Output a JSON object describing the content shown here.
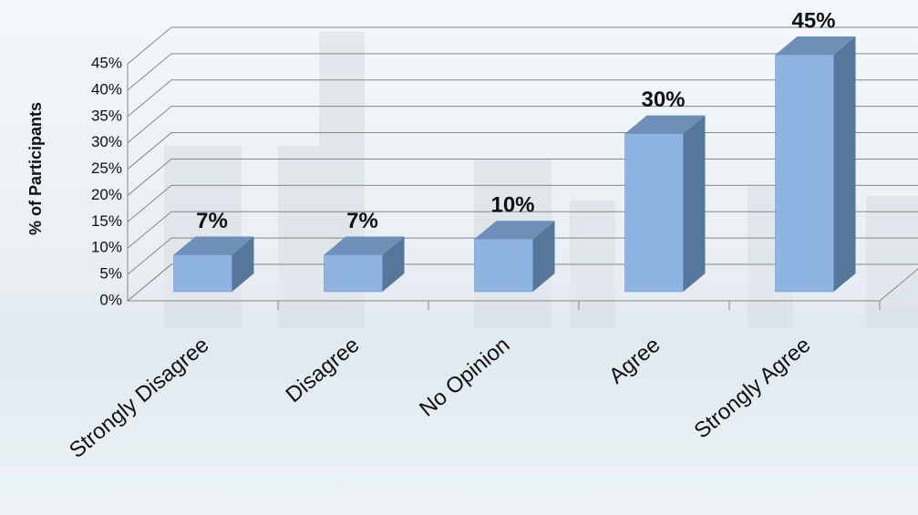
{
  "chart_data": {
    "type": "bar3d",
    "y_axis_label": "% of Participants",
    "categories": [
      "Strongly Disagree",
      "Disagree",
      "No Opinion",
      "Agree",
      "Strongly Agree"
    ],
    "values": [
      7,
      7,
      10,
      30,
      45
    ],
    "value_labels": [
      "7%",
      "7%",
      "10%",
      "30%",
      "45%"
    ],
    "color": "#8db4e2",
    "ylim": [
      0,
      45
    ],
    "yticks": [
      {
        "value": 0,
        "label": "0%"
      },
      {
        "value": 5,
        "label": "5%"
      },
      {
        "value": 10,
        "label": "10%"
      },
      {
        "value": 15,
        "label": "15%"
      },
      {
        "value": 20,
        "label": "20%"
      },
      {
        "value": 25,
        "label": "25%"
      },
      {
        "value": 30,
        "label": "30%"
      },
      {
        "value": 35,
        "label": "35%"
      },
      {
        "value": 40,
        "label": "40%"
      },
      {
        "value": 45,
        "label": "45%"
      }
    ],
    "grid": true
  }
}
